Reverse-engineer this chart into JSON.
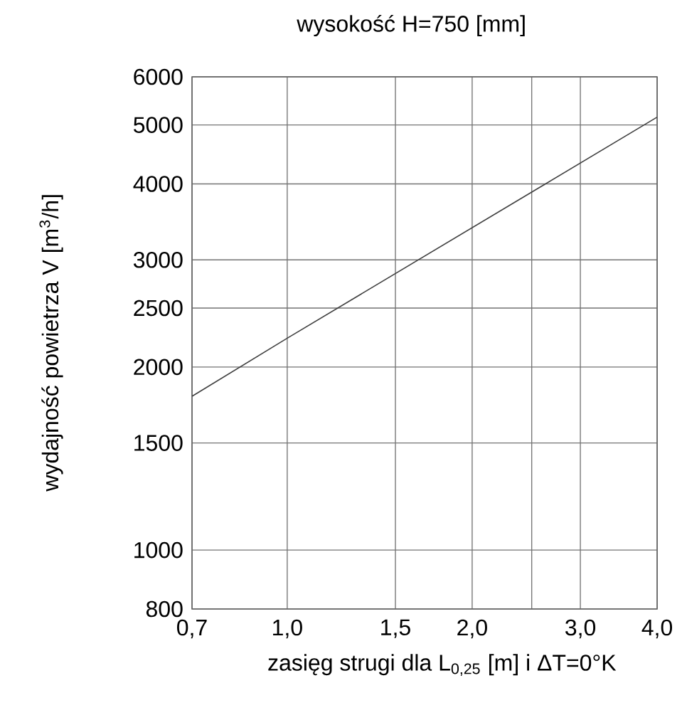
{
  "chart_data": {
    "type": "line",
    "title": "wysokość  H=750 [mm]",
    "xlabel": "zasięg strugi dla L$_{0,25}$ [m] i ΔT=0°K",
    "ylabel": "wydajność powietrza V [m$^{3}$/h]",
    "log": "xy",
    "grid": true,
    "xlim": [
      0.7,
      4.0
    ],
    "ylim": [
      800,
      6000
    ],
    "xticks": [
      {
        "value": 0.7,
        "label": "0,7"
      },
      {
        "value": 1.0,
        "label": "1,0"
      },
      {
        "value": 1.5,
        "label": "1,5"
      },
      {
        "value": 2.0,
        "label": "2,0"
      },
      {
        "value": 2.5,
        "label": null
      },
      {
        "value": 3.0,
        "label": "3,0"
      },
      {
        "value": 4.0,
        "label": "4,0"
      }
    ],
    "yticks": [
      800,
      1000,
      1500,
      2000,
      2500,
      3000,
      4000,
      5000,
      6000
    ],
    "series": [
      {
        "color": "#404040",
        "x": [
          0.7,
          1.0,
          4.0
        ],
        "values": [
          1790,
          2230,
          5150
        ]
      }
    ]
  }
}
